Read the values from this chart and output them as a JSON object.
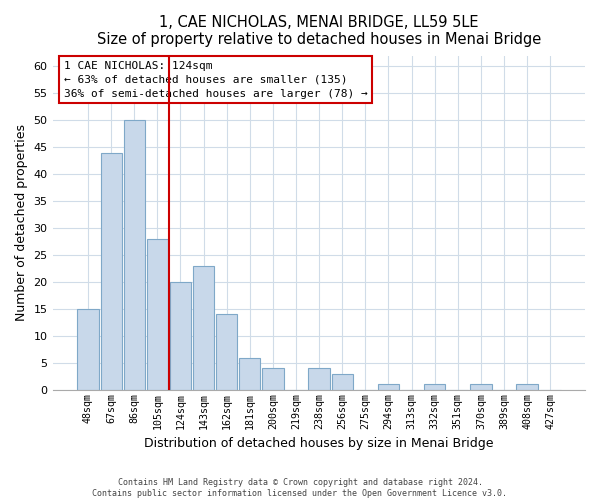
{
  "title": "1, CAE NICHOLAS, MENAI BRIDGE, LL59 5LE",
  "subtitle": "Size of property relative to detached houses in Menai Bridge",
  "xlabel": "Distribution of detached houses by size in Menai Bridge",
  "ylabel": "Number of detached properties",
  "bin_labels": [
    "48sqm",
    "67sqm",
    "86sqm",
    "105sqm",
    "124sqm",
    "143sqm",
    "162sqm",
    "181sqm",
    "200sqm",
    "219sqm",
    "238sqm",
    "256sqm",
    "275sqm",
    "294sqm",
    "313sqm",
    "332sqm",
    "351sqm",
    "370sqm",
    "389sqm",
    "408sqm",
    "427sqm"
  ],
  "bar_values": [
    15,
    44,
    50,
    28,
    20,
    23,
    14,
    6,
    4,
    0,
    4,
    3,
    0,
    1,
    0,
    1,
    0,
    1,
    0,
    1,
    0
  ],
  "bar_color": "#c8d8ea",
  "bar_edge_color": "#7fa8c8",
  "vline_color": "#cc0000",
  "annotation_title": "1 CAE NICHOLAS: 124sqm",
  "annotation_line1": "← 63% of detached houses are smaller (135)",
  "annotation_line2": "36% of semi-detached houses are larger (78) →",
  "annotation_box_color": "#ffffff",
  "annotation_box_edge": "#cc0000",
  "ylim": [
    0,
    62
  ],
  "yticks": [
    0,
    5,
    10,
    15,
    20,
    25,
    30,
    35,
    40,
    45,
    50,
    55,
    60
  ],
  "footer1": "Contains HM Land Registry data © Crown copyright and database right 2024.",
  "footer2": "Contains public sector information licensed under the Open Government Licence v3.0.",
  "bg_color": "#ffffff",
  "plot_bg_color": "#ffffff",
  "grid_color": "#d0dce8"
}
